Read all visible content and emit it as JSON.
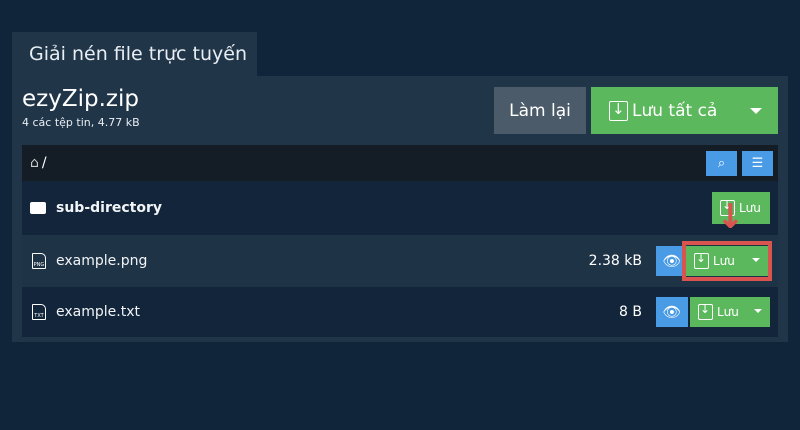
{
  "tab_title": "Giải nén file trực tuyến",
  "archive": {
    "name": "ezyZip.zip",
    "summary": "4 các tệp tin, 4.77 kB"
  },
  "toolbar": {
    "reset_label": "Làm lại",
    "save_all_label": "Lưu tất cả"
  },
  "path": "/",
  "save_label": "Lưu",
  "rows": [
    {
      "name": "sub-directory",
      "type": "folder"
    },
    {
      "name": "example.png",
      "size": "2.38 kB",
      "badge": "PNG"
    },
    {
      "name": "example.txt",
      "size": "8 B",
      "badge": "TXT"
    }
  ],
  "colors": {
    "save": "#5cb85c",
    "info": "#4a9be6",
    "highlight": "#d9534f"
  }
}
